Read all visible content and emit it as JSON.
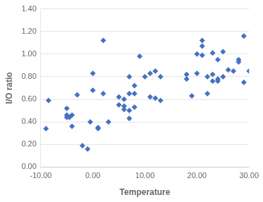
{
  "chart_data": {
    "type": "scatter",
    "xlabel": "Temperature",
    "ylabel": "I/O ratio",
    "xlim": [
      -10,
      30
    ],
    "ylim": [
      0.0,
      1.4
    ],
    "xticks": [
      {
        "value": -10,
        "label": "-10.00"
      },
      {
        "value": 0,
        "label": "0.00"
      },
      {
        "value": 10,
        "label": "10.00"
      },
      {
        "value": 20,
        "label": "20.00"
      },
      {
        "value": 30,
        "label": "30.00"
      }
    ],
    "yticks": [
      {
        "value": 0.0,
        "label": "0.00"
      },
      {
        "value": 0.2,
        "label": "0.20"
      },
      {
        "value": 0.4,
        "label": "0.40"
      },
      {
        "value": 0.6,
        "label": "0.60"
      },
      {
        "value": 0.8,
        "label": "0.80"
      },
      {
        "value": 1.0,
        "label": "1.00"
      },
      {
        "value": 1.2,
        "label": "1.20"
      },
      {
        "value": 1.4,
        "label": "1.40"
      }
    ],
    "color": "#4472C4",
    "marker": "diamond",
    "grid": "y",
    "x": [
      -9,
      -8.5,
      -5,
      -5,
      -5,
      -4.5,
      -4,
      -4,
      -3,
      -2,
      -1,
      -0.5,
      0,
      0,
      1,
      1,
      2,
      2,
      3,
      5,
      5,
      6,
      6,
      6,
      7,
      7,
      7,
      7,
      8,
      8,
      8,
      9,
      10,
      11,
      11,
      12,
      12,
      13,
      13,
      18,
      18,
      19,
      20,
      20,
      21,
      21,
      21,
      22,
      22,
      23,
      23,
      23,
      24,
      24,
      24,
      25,
      25,
      26,
      27,
      28,
      28,
      29,
      29,
      30
    ],
    "values": [
      0.34,
      0.59,
      0.52,
      0.46,
      0.44,
      0.44,
      0.46,
      0.36,
      0.64,
      0.19,
      0.16,
      0.4,
      0.83,
      0.68,
      0.35,
      0.34,
      0.65,
      1.12,
      0.4,
      0.62,
      0.55,
      0.6,
      0.54,
      0.51,
      0.8,
      0.65,
      0.5,
      0.43,
      0.65,
      0.72,
      0.53,
      0.98,
      0.8,
      0.83,
      0.62,
      0.85,
      0.61,
      0.59,
      0.8,
      0.82,
      0.78,
      0.63,
      1.0,
      0.83,
      1.07,
      0.99,
      1.12,
      0.8,
      0.65,
      0.76,
      0.82,
      1.01,
      0.78,
      0.95,
      0.76,
      1.02,
      0.8,
      0.86,
      0.85,
      0.95,
      0.93,
      1.16,
      0.75,
      0.85
    ]
  }
}
